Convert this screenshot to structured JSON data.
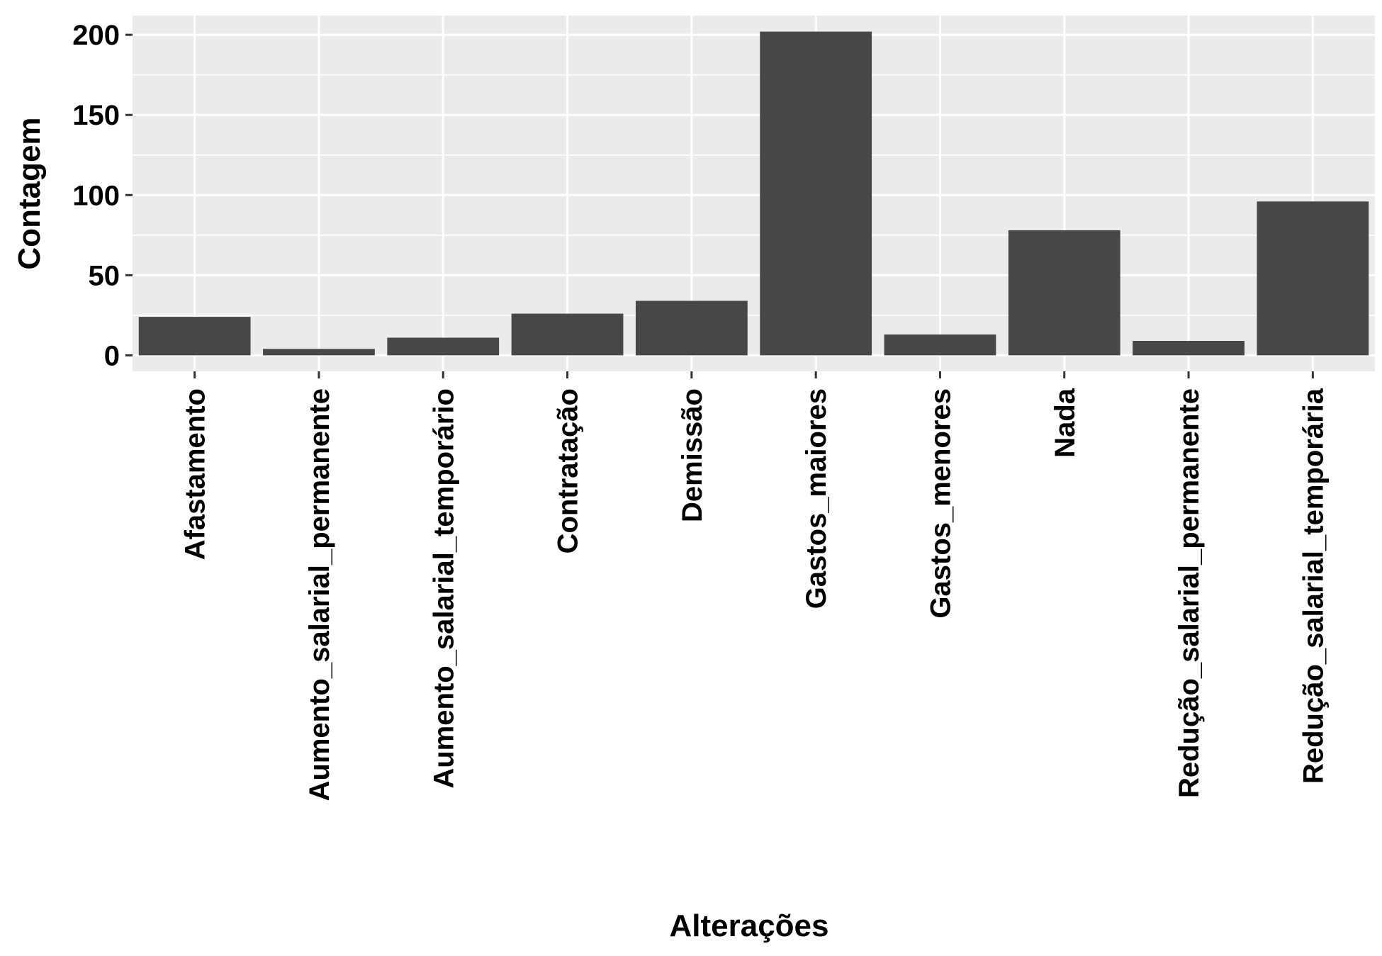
{
  "chart_data": {
    "type": "bar",
    "title": "",
    "xlabel": "Alterações",
    "ylabel": "Contagem",
    "categories": [
      "Afastamento",
      "Aumento_salarial_permanente",
      "Aumento_salarial_temporário",
      "Contratação",
      "Demissão",
      "Gastos_maiores",
      "Gastos_menores",
      "Nada",
      "Redução_salarial_permanente",
      "Redução_salarial_temporária"
    ],
    "values": [
      24,
      4,
      11,
      26,
      34,
      202,
      13,
      78,
      9,
      96
    ],
    "ylim": [
      -10,
      212
    ],
    "yticks": [
      0,
      50,
      100,
      150,
      200
    ],
    "ytick_labels": [
      "0",
      "50",
      "100",
      "150",
      "200"
    ],
    "grid": true,
    "legend": "none",
    "colors": {
      "bar": "#474747",
      "panel": "#ebebeb",
      "grid": "#ffffff",
      "tick": "#333333"
    }
  }
}
